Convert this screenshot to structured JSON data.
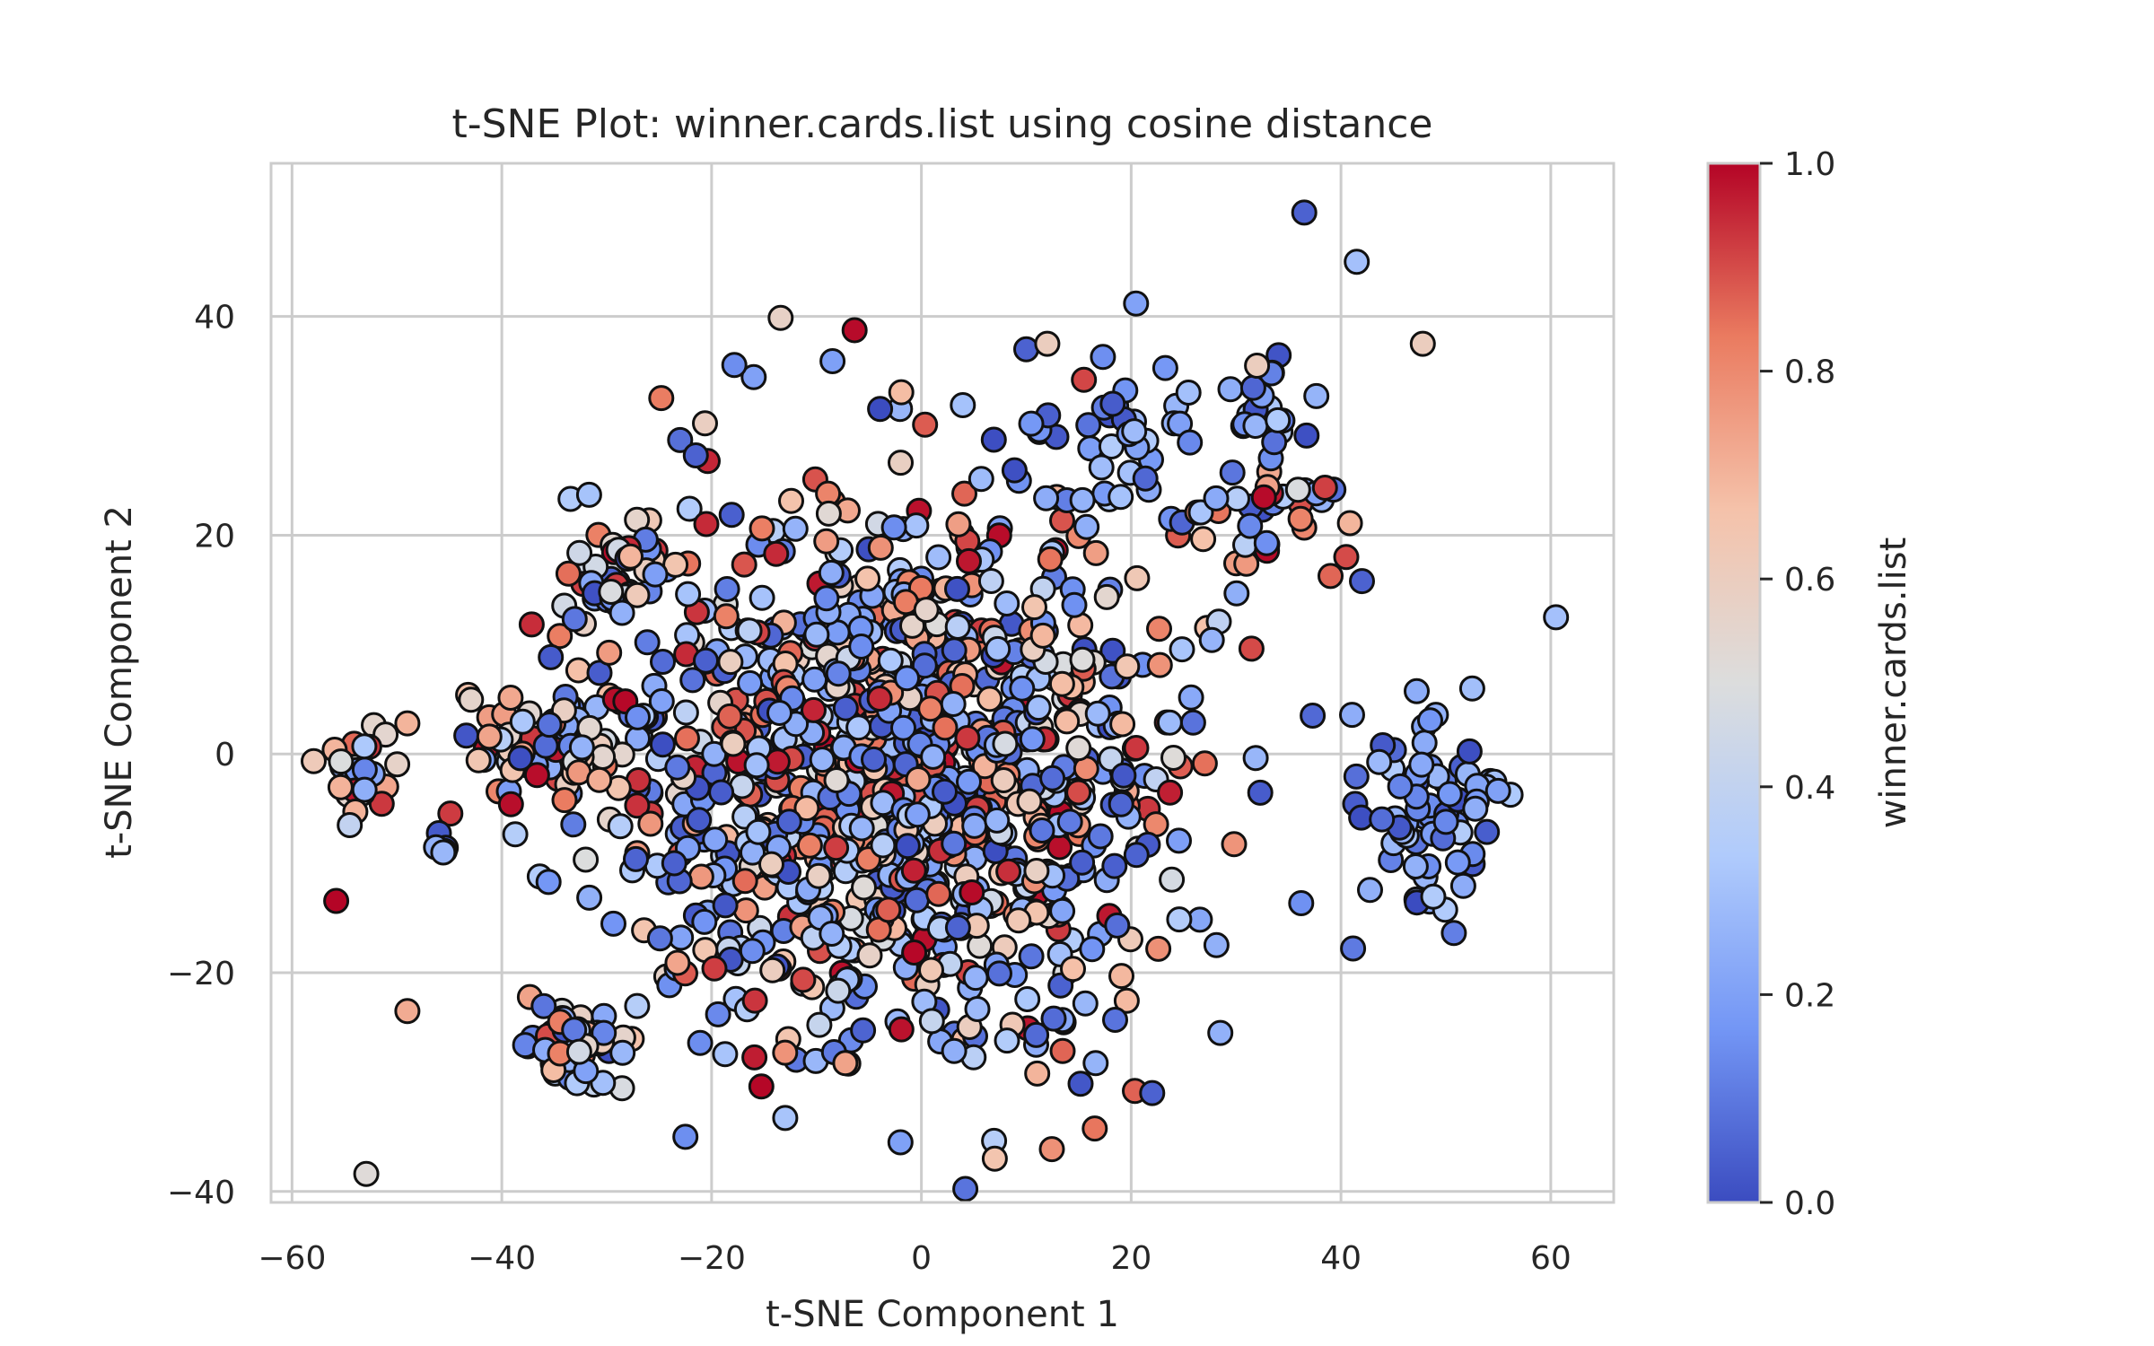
{
  "chart_data": {
    "type": "scatter",
    "title": "t-SNE Plot: winner.cards.list using cosine distance",
    "xlabel": "t-SNE Component 1",
    "ylabel": "t-SNE Component 2",
    "xlim": [
      -62,
      66
    ],
    "ylim": [
      -41,
      54
    ],
    "xticks": [
      -60,
      -40,
      -20,
      0,
      20,
      40,
      60
    ],
    "yticks": [
      -40,
      -20,
      0,
      20,
      40
    ],
    "xtick_labels": [
      "−60",
      "−40",
      "−20",
      "0",
      "20",
      "40",
      "60"
    ],
    "ytick_labels": [
      "−40",
      "−20",
      "0",
      "20",
      "40"
    ],
    "grid": true,
    "colorbar": {
      "label": "winner.cards.list",
      "colormap": "coolwarm",
      "range": [
        0.0,
        1.0
      ],
      "ticks": [
        0.0,
        0.2,
        0.4,
        0.6,
        0.8,
        1.0
      ],
      "tick_labels": [
        "0.0",
        "0.2",
        "0.4",
        "0.6",
        "0.8",
        "1.0"
      ],
      "colors": [
        "#3b4cc0",
        "#7396f5",
        "#b0cbfc",
        "#dcdddd",
        "#f5c2aa",
        "#ea7b60",
        "#b40426"
      ]
    },
    "points": [
      {
        "x": 36.5,
        "y": 49.5,
        "c": 0.05
      },
      {
        "x": 41.5,
        "y": 45.0,
        "c": 0.3
      },
      {
        "x": 60.5,
        "y": 12.5,
        "c": 0.3
      },
      {
        "x": 47.8,
        "y": 37.5,
        "c": 0.6
      },
      {
        "x": -49.0,
        "y": 2.8,
        "c": 0.7
      },
      {
        "x": -49.0,
        "y": -23.5,
        "c": 0.72
      },
      {
        "x": 22.0,
        "y": -31.0,
        "c": 0.05
      },
      {
        "x": 28.5,
        "y": -25.5,
        "c": 0.25
      },
      {
        "x": 7.0,
        "y": -37.0,
        "c": 0.65
      },
      {
        "x": -2.0,
        "y": -35.5,
        "c": 0.2
      },
      {
        "x": -22.5,
        "y": -35.0,
        "c": 0.15
      },
      {
        "x": 42.0,
        "y": 15.8,
        "c": 0.05
      },
      {
        "x": 40.5,
        "y": 18.0,
        "c": 0.9
      },
      {
        "x": 32.0,
        "y": 35.5,
        "c": 0.6
      },
      {
        "x": 10.0,
        "y": 37.0,
        "c": 0.05
      },
      {
        "x": 12.0,
        "y": 37.5,
        "c": 0.6
      },
      {
        "x": -23.0,
        "y": 28.7,
        "c": 0.08
      },
      {
        "x": -21.5,
        "y": 27.3,
        "c": 0.05
      },
      {
        "x": -54.5,
        "y": -6.5,
        "c": 0.4
      }
    ],
    "clusters": [
      {
        "cx": -2,
        "cy": -2,
        "sx": 13,
        "sy": 13,
        "n": 1100
      },
      {
        "cx": -30,
        "cy": 16,
        "sx": 2.8,
        "sy": 3.0,
        "n": 45
      },
      {
        "cx": -35,
        "cy": 1,
        "sx": 5,
        "sy": 4,
        "n": 80
      },
      {
        "cx": -33,
        "cy": -27,
        "sx": 2.8,
        "sy": 2.5,
        "n": 45
      },
      {
        "cx": 49,
        "cy": -5,
        "sx": 3.3,
        "sy": 4.2,
        "n": 70
      },
      {
        "cx": 35,
        "cy": 21,
        "sx": 3.5,
        "sy": 3,
        "n": 30
      },
      {
        "cx": 33,
        "cy": 32,
        "sx": 1.8,
        "sy": 2.2,
        "n": 20
      },
      {
        "cx": 21,
        "cy": 30,
        "sx": 4,
        "sy": 4,
        "n": 40
      },
      {
        "cx": -54,
        "cy": -1.5,
        "sx": 2.0,
        "sy": 2.0,
        "n": 20
      },
      {
        "cx": -46,
        "cy": -8,
        "sx": 1,
        "sy": 1,
        "n": 6
      }
    ]
  }
}
